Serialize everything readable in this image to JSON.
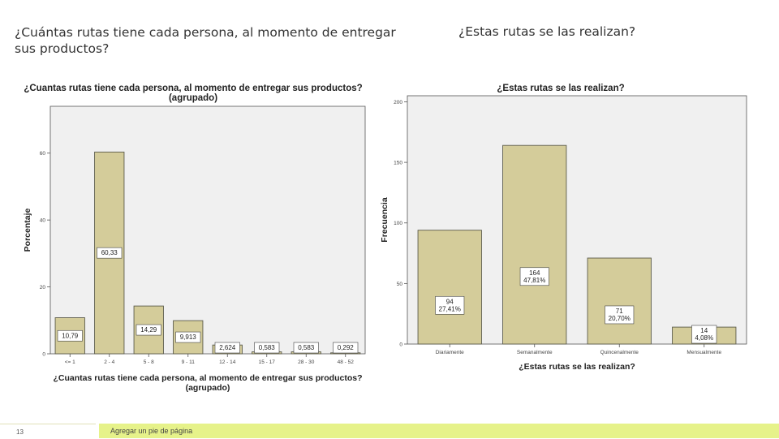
{
  "slide": {
    "title_left": "¿Cuántas rutas tiene cada persona, al momento de entregar sus productos?",
    "title_right": "¿Estas rutas se las realizan?",
    "page_number": "13",
    "footer_text": "Agregar un pie de página"
  },
  "colors": {
    "bar_fill": "#d4cc9a",
    "bar_stroke": "#5b5b4a",
    "plot_bg": "#f0f0f0",
    "footer_accent": "#e6f28a"
  },
  "chart_data": [
    {
      "type": "bar",
      "title_lines": [
        "¿Cuantas rutas tiene cada persona, al momento de entregar sus productos?",
        "(agrupado)"
      ],
      "xlabel_lines": [
        "¿Cuantas rutas tiene cada persona, al momento de entregar sus productos?",
        "(agrupado)"
      ],
      "ylabel": "Porcentaje",
      "categories": [
        "<= 1",
        "2 - 4",
        "5 - 8",
        "9 - 11",
        "12 - 14",
        "15 - 17",
        "28 - 30",
        "48 - 52"
      ],
      "values": [
        10.79,
        60.33,
        14.29,
        9.913,
        2.624,
        0.583,
        0.583,
        0.292
      ],
      "data_labels": [
        "10,79",
        "60,33",
        "14,29",
        "9,913",
        "2,624",
        "0,583",
        "0,583",
        "0,292"
      ],
      "yticks": [
        0,
        20,
        40,
        60
      ],
      "ytick_labels": [
        "0",
        "20",
        "40",
        "60"
      ],
      "ylim": [
        0,
        74
      ],
      "grid": false
    },
    {
      "type": "bar",
      "title_lines": [
        "¿Estas rutas se las realizan?"
      ],
      "xlabel_lines": [
        "¿Estas rutas se las realizan?"
      ],
      "ylabel": "Frecuencia",
      "categories": [
        "Diariamente",
        "Semanalmente",
        "Quincenalmente",
        "Mensualmente"
      ],
      "values": [
        94,
        164,
        71,
        14
      ],
      "data_labels": [
        [
          "94",
          "27,41%"
        ],
        [
          "164",
          "47,81%"
        ],
        [
          "71",
          "20,70%"
        ],
        [
          "14",
          "4,08%"
        ]
      ],
      "yticks": [
        0,
        50,
        100,
        150,
        200
      ],
      "ytick_labels": [
        "0",
        "50",
        "100",
        "150",
        "200"
      ],
      "ylim": [
        0,
        205
      ],
      "grid": false
    }
  ]
}
